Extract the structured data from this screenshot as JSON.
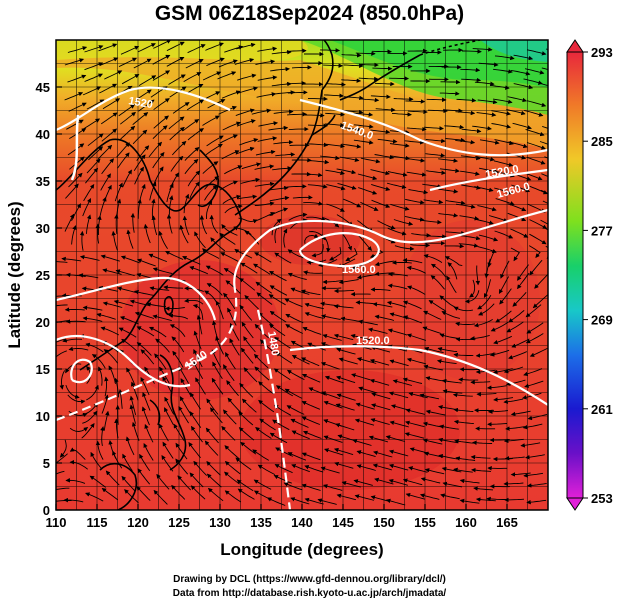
{
  "title": "GSM 06Z18Sep2024 (850.0hPa)",
  "x_axis": {
    "label": "Longitude (degrees)",
    "ticks": [
      "110",
      "115",
      "120",
      "125",
      "130",
      "135",
      "140",
      "145",
      "150",
      "155",
      "160",
      "165"
    ],
    "range": [
      110,
      170
    ]
  },
  "y_axis": {
    "label": "Latitude  (degrees)",
    "ticks": [
      "0",
      "5",
      "10",
      "15",
      "20",
      "25",
      "30",
      "35",
      "40",
      "45"
    ],
    "range": [
      0,
      50
    ]
  },
  "colorbar": {
    "labels": [
      "293",
      "285",
      "277",
      "269",
      "261",
      "253"
    ],
    "colors": [
      "#e8283c",
      "#f07a28",
      "#f0c828",
      "#7ee01e",
      "#18d06a",
      "#18c8c8",
      "#1c6ee8",
      "#1a1ad0",
      "#6a10c8",
      "#e020d8"
    ]
  },
  "contour_labels": [
    "1520",
    "1540",
    "1520.0",
    "1560.0",
    "1560.0",
    "1520.0",
    "1540.0",
    "1480"
  ],
  "credits": {
    "line1": "Drawing by DCL (https://www.gfd-dennou.org/library/dcl/)",
    "line2": "Data from http://database.rish.kyoto-u.ac.jp/arch/jmadata/"
  }
}
